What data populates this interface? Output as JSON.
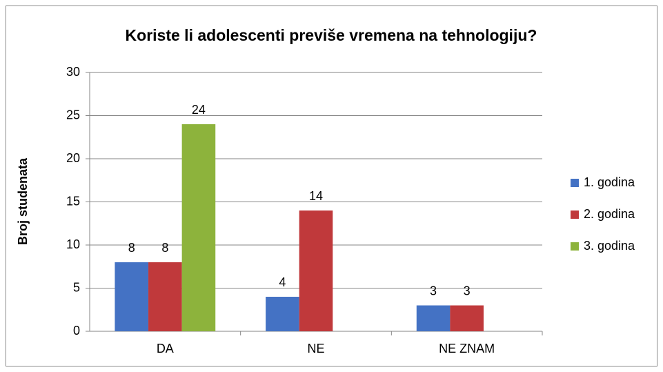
{
  "chart_data": {
    "type": "bar",
    "title": "Koriste li adolescenti previše vremena na tehnologiju?",
    "y_label": "Broj studenata",
    "categories": [
      "DA",
      "NE",
      "NE ZNAM"
    ],
    "series": [
      {
        "name": "1. godina",
        "color": "#4472c4",
        "values": [
          8,
          4,
          3
        ]
      },
      {
        "name": "2. godina",
        "color": "#c0393b",
        "values": [
          8,
          14,
          3
        ]
      },
      {
        "name": "3. godina",
        "color": "#8db33c",
        "values": [
          24,
          null,
          null
        ]
      }
    ],
    "ylim": [
      0,
      30
    ],
    "yticks": [
      0,
      5,
      10,
      15,
      20,
      25,
      30
    ],
    "grid": true,
    "legend": "right"
  }
}
